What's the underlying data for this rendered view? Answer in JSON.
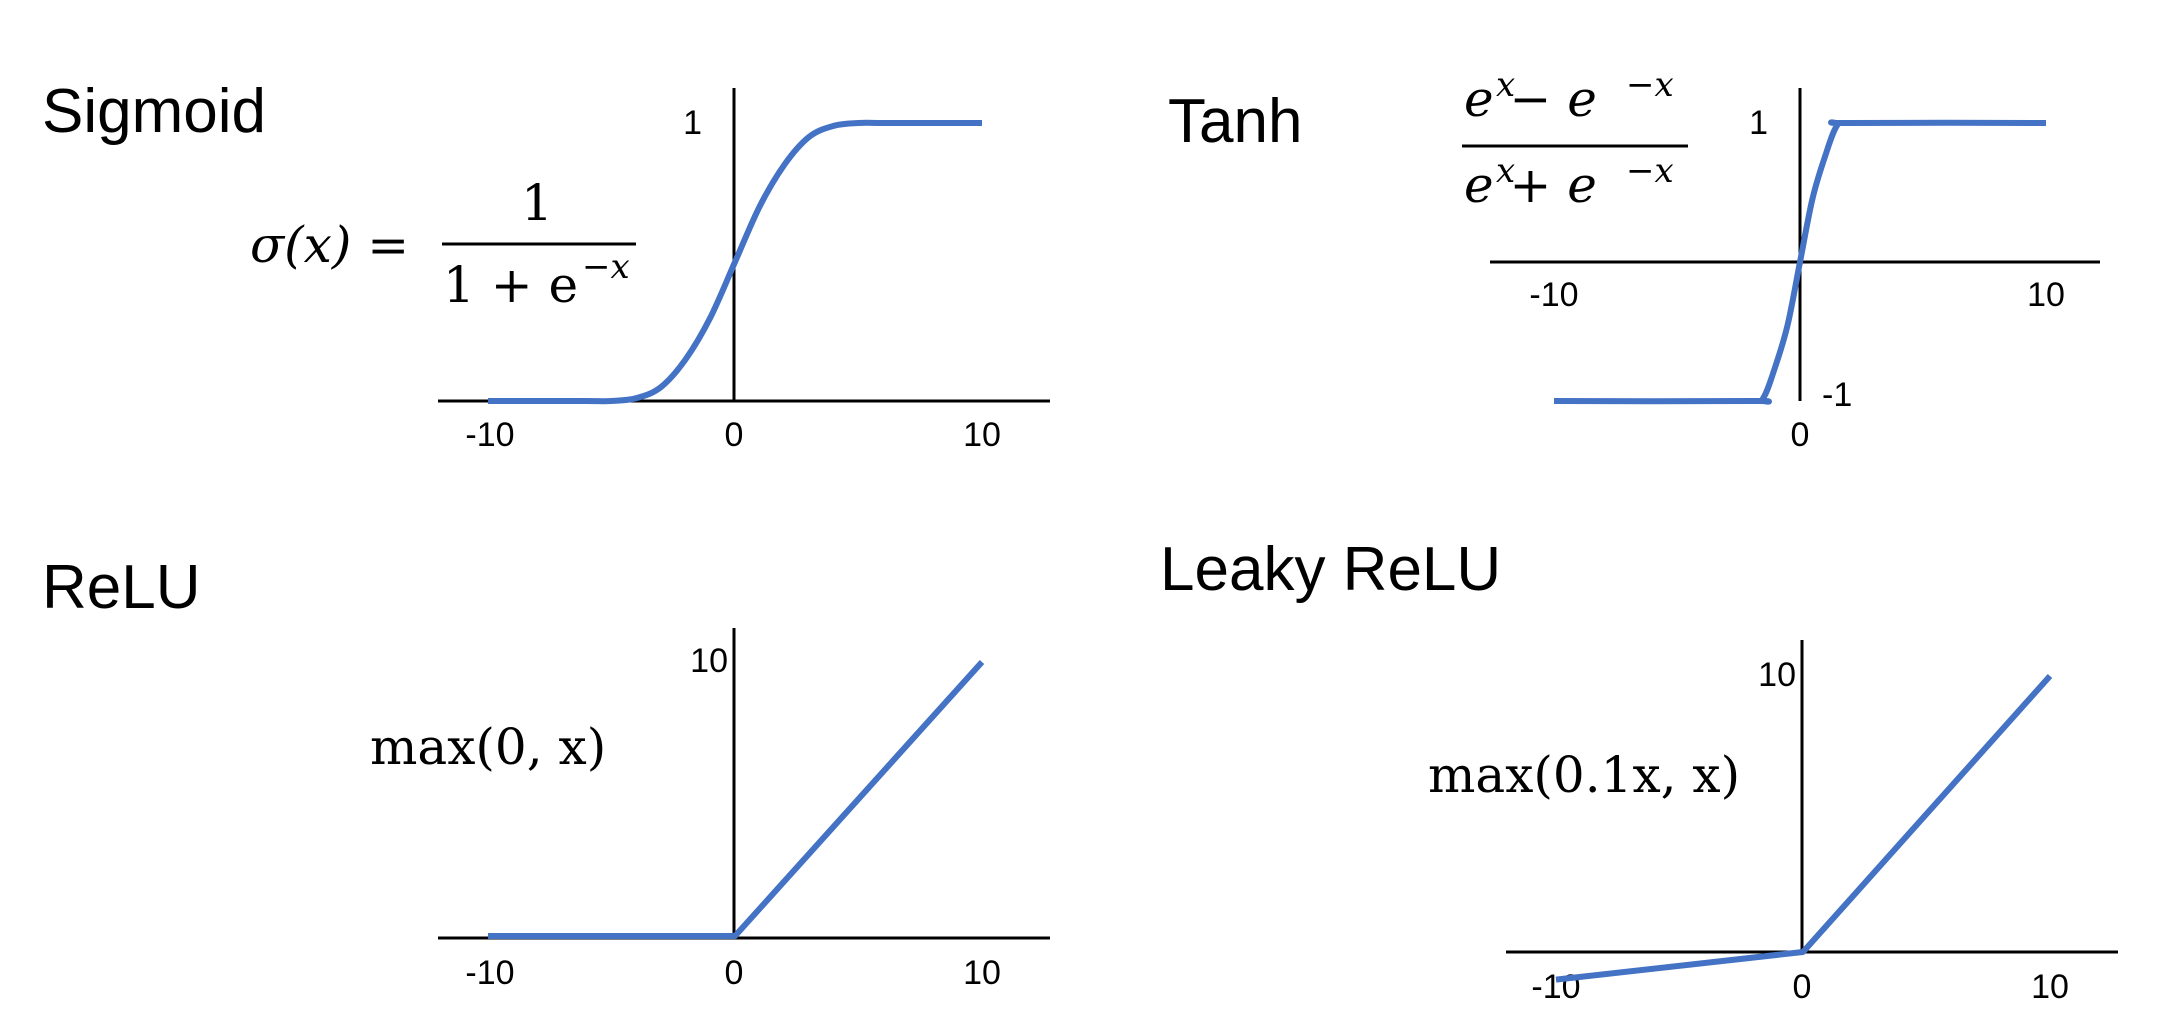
{
  "chart_data": [
    {
      "type": "line",
      "title": "Sigmoid",
      "formula": "σ(x) = 1 / (1 + e^(−x))",
      "formula_parts": {
        "lhs": "σ(x) =",
        "numerator": "1",
        "denominator": "1 + e",
        "exponent": "−x"
      },
      "xlim": [
        -10,
        10
      ],
      "ylim": [
        0,
        1
      ],
      "xticks": [
        "-10",
        "0",
        "10"
      ],
      "yticks": [
        "1"
      ],
      "color": "#4472c4",
      "x": [
        -10,
        -8,
        -6,
        -5,
        -4,
        -3,
        -2,
        -1,
        0,
        1,
        2,
        3,
        4,
        5,
        6,
        8,
        10
      ],
      "y": [
        0,
        0,
        0,
        0,
        0.01,
        0.05,
        0.15,
        0.3,
        0.5,
        0.7,
        0.85,
        0.95,
        0.99,
        1,
        1,
        1,
        1
      ]
    },
    {
      "type": "line",
      "title": "Tanh",
      "formula": "(e^x − e^(−x)) / (e^x + e^(−x))",
      "formula_parts": {
        "numerator": "e − e",
        "denominator": "e + e",
        "exp_pos": "x",
        "exp_neg": "−x"
      },
      "xlim": [
        -10,
        10
      ],
      "ylim": [
        -1,
        1
      ],
      "xticks": [
        "-10",
        "0",
        "10"
      ],
      "yticks": [
        "1",
        "-1"
      ],
      "color": "#4472c4",
      "x": [
        -10,
        -2,
        -1.5,
        -1,
        -0.5,
        0,
        0.5,
        1,
        1.5,
        2,
        10
      ],
      "y": [
        -1,
        -1,
        -0.98,
        -0.75,
        -0.45,
        0,
        0.45,
        0.75,
        0.98,
        1,
        1
      ]
    },
    {
      "type": "line",
      "title": "ReLU",
      "formula": "max(0, x)",
      "xlim": [
        -10,
        10
      ],
      "ylim": [
        0,
        10
      ],
      "xticks": [
        "-10",
        "0",
        "10"
      ],
      "yticks": [
        "10"
      ],
      "color": "#4472c4",
      "x": [
        -10,
        0,
        10
      ],
      "y": [
        0,
        0,
        10
      ]
    },
    {
      "type": "line",
      "title": "Leaky ReLU",
      "formula": "max(0.1x, x)",
      "xlim": [
        -10,
        10
      ],
      "ylim": [
        -1,
        10
      ],
      "xticks": [
        "-10",
        "0",
        "10"
      ],
      "yticks": [
        "10"
      ],
      "color": "#4472c4",
      "x": [
        -10,
        0,
        10
      ],
      "y": [
        -1,
        0,
        10
      ]
    }
  ]
}
